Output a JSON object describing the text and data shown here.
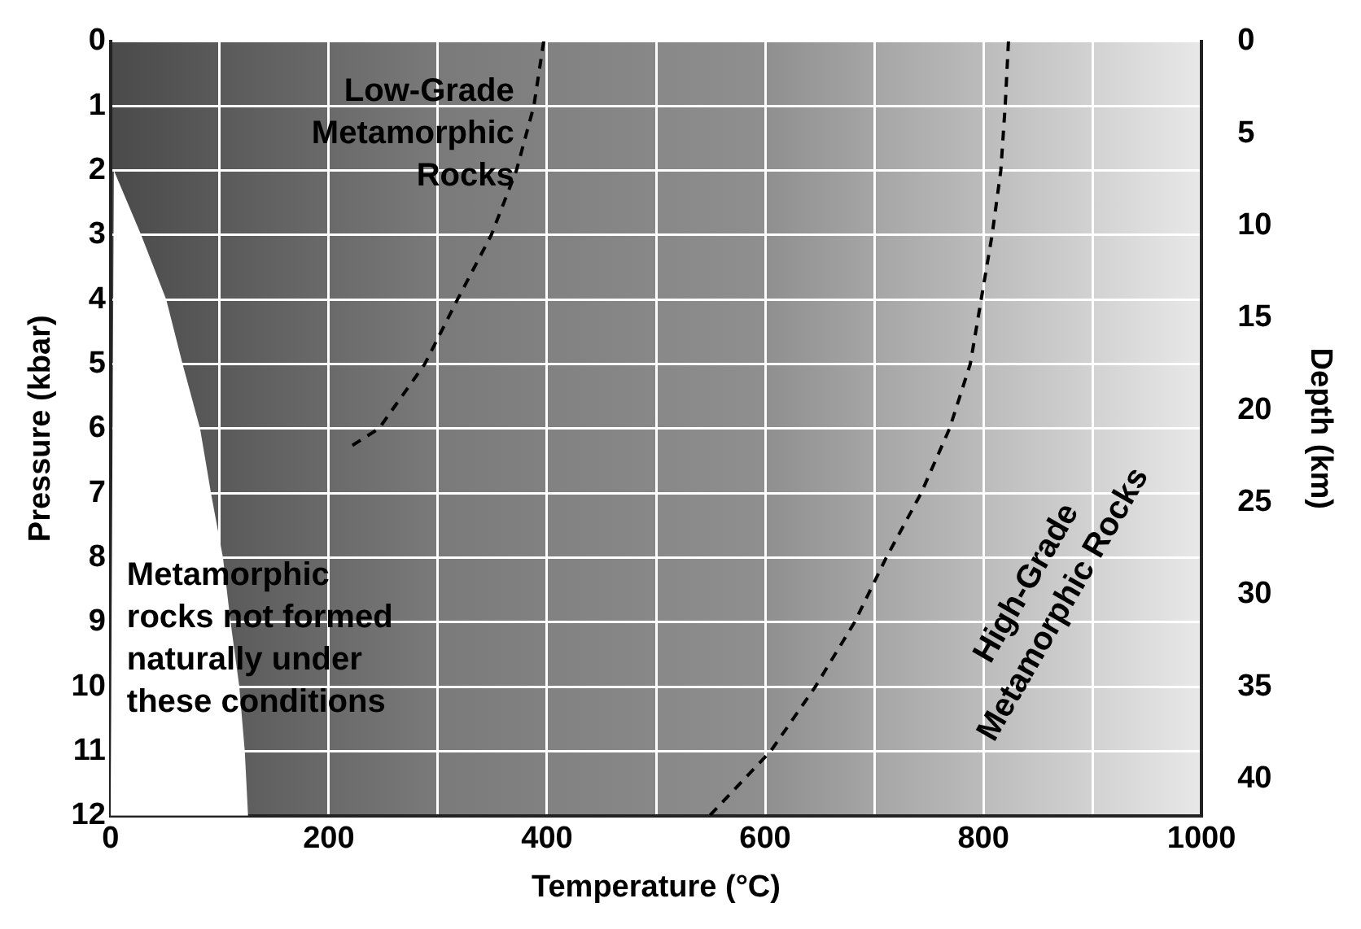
{
  "chart_data": {
    "type": "line",
    "xlabel": "Temperature (°C)",
    "ylabel": "Pressure (kbar)",
    "y2label": "Depth (km)",
    "xlim": [
      0,
      1000
    ],
    "ylim": [
      12,
      0
    ],
    "y2lim": [
      42,
      0
    ],
    "xticks": [
      0,
      {
        "value": 100,
        "label": null
      },
      200,
      {
        "value": 300,
        "label": null
      },
      400,
      {
        "value": 500,
        "label": null
      },
      600,
      {
        "value": 700,
        "label": null
      },
      800,
      {
        "value": 900,
        "label": null
      },
      1000
    ],
    "yticks": [
      0,
      1,
      2,
      3,
      4,
      5,
      6,
      7,
      8,
      9,
      10,
      11,
      12
    ],
    "y2ticks": [
      0,
      5,
      10,
      15,
      20,
      25,
      30,
      35,
      40
    ],
    "grid": true,
    "legend": false,
    "series": [
      {
        "type": "area",
        "color": "#ffffff",
        "x": [
          0,
          3,
          28,
          51,
          66,
          82,
          92,
          103,
          110,
          118,
          123,
          126,
          0
        ],
        "values": [
          12,
          2,
          3,
          4,
          5,
          6,
          7,
          8,
          9,
          10,
          11,
          12,
          12
        ]
      },
      {
        "type": "line",
        "color": "#000000",
        "line_style": "dashed",
        "x": [
          397,
          388,
          372,
          349,
          318,
          288,
          246,
          218
        ],
        "values": [
          0,
          1,
          2,
          3,
          4,
          5,
          6,
          6.3
        ]
      },
      {
        "type": "line",
        "color": "#000000",
        "line_style": "dashed",
        "x": [
          823,
          820,
          816,
          808,
          798,
          788,
          769,
          743,
          711,
          682,
          646,
          605,
          549
        ],
        "values": [
          0,
          1,
          2,
          3,
          4,
          5,
          6,
          7,
          8,
          9,
          10,
          11,
          12
        ]
      }
    ],
    "annotations": [
      "Low-Grade Metamorphic Rocks",
      "Metamorphic rocks not formed naturally under these conditions",
      "High-Grade Metamorphic Rocks"
    ]
  }
}
